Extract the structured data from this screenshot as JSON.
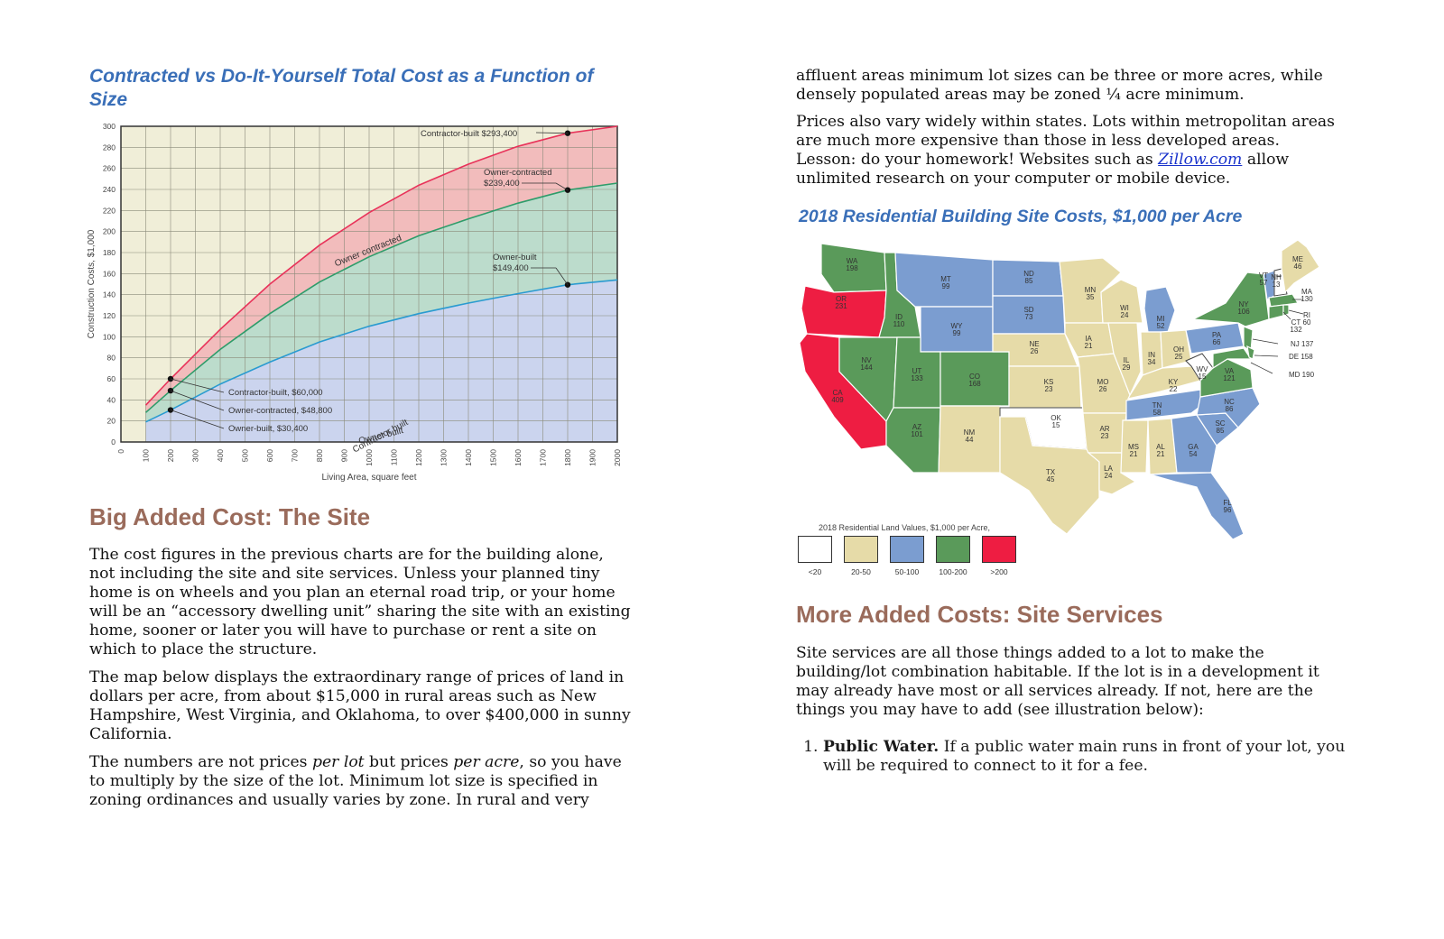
{
  "left_page": {
    "chart_title": "Contracted vs Do-It-Yourself Total Cost as a Function of Size",
    "section_title": "Big Added Cost: The Site",
    "paragraphs": [
      "The cost figures in the previous charts are for the building alone, not including the site and site services. Unless your planned tiny home is on wheels and you plan an eternal road trip, or your home will be an “accessory dwelling unit” sharing the site with an existing home, sooner or later you will have to purchase or rent a site on which to place the structure.",
      "The map below displays the extraordinary range of prices of land in dollars per acre, from about $15,000 in rural areas such as New Hampshire, West Virginia, and Oklahoma, to over $400,000 in sunny California."
    ],
    "para3": {
      "t1": "The numbers are not prices ",
      "em1": "per lot",
      "t2": " but prices ",
      "em2": "per acre",
      "t3": ", so you have to multiply by the size of the lot. Minimum lot size is specified in zoning ordinances and usually varies by zone. In rural and very"
    }
  },
  "chart_data": {
    "type": "area",
    "xlabel": "Living Area, square feet",
    "ylabel": "Construction Costs, $1,000",
    "x_ticks": [
      0,
      100,
      200,
      300,
      400,
      500,
      600,
      700,
      800,
      900,
      1000,
      1100,
      1200,
      1300,
      1400,
      1500,
      1600,
      1700,
      1800,
      1900,
      2000
    ],
    "y_ticks": [
      0,
      20,
      40,
      60,
      80,
      100,
      120,
      140,
      160,
      180,
      200,
      220,
      240,
      260,
      280,
      300
    ],
    "xlim": [
      0,
      2000
    ],
    "ylim": [
      0,
      300
    ],
    "grid": true,
    "series": [
      {
        "name": "Contractor built",
        "color": "#e8335a",
        "fill": "#f2bcbc",
        "x": [
          100,
          200,
          400,
          600,
          800,
          1000,
          1200,
          1400,
          1600,
          1800,
          2000
        ],
        "y": [
          35,
          60,
          107,
          150,
          187,
          218,
          244,
          264,
          281,
          293.4,
          300
        ]
      },
      {
        "name": "Owner contracted",
        "color": "#2e9c6a",
        "fill": "#bcdccc",
        "x": [
          100,
          200,
          400,
          600,
          800,
          1000,
          1200,
          1400,
          1600,
          1800,
          2000
        ],
        "y": [
          28,
          48.8,
          88,
          122,
          152,
          176,
          196,
          212,
          227,
          239.4,
          246
        ]
      },
      {
        "name": "Owner built",
        "color": "#2a9bd0",
        "fill": "#cbd4ee",
        "x": [
          100,
          200,
          400,
          600,
          800,
          1000,
          1200,
          1400,
          1600,
          1800,
          2000
        ],
        "y": [
          19,
          30.4,
          55,
          76,
          95,
          110,
          122,
          132,
          141,
          149.4,
          154
        ]
      }
    ],
    "annotations": {
      "contractor_high": "Contractor-built $293,400",
      "owner_contracted_high_1": "Owner-contracted",
      "owner_contracted_high_2": "$239,400",
      "owner_built_high_1": "Owner-built",
      "owner_built_high_2": "$149,400",
      "contractor_low": "Contractor-built, $60,000",
      "owner_contracted_low": "Owner-contracted, $48,800",
      "owner_built_low": "Owner-built, $30,400"
    },
    "background_color": "#f0eed8"
  },
  "right_page": {
    "para_top": "affluent areas minimum lot sizes can be three or more acres, while densely populated areas may be zoned ¼ acre minimum.",
    "para2_before": "Prices also vary widely within states. Lots within metropolitan areas are much more expensive than those in less developed areas. Lesson: do your homework! Websites such as ",
    "para2_link": "Zillow.com",
    "para2_after": " allow unlimited research on your computer or mobile device.",
    "map_title": "2018 Residential Building Site Costs, $1,000 per Acre",
    "legend": {
      "title": "2018 Residential Land Values, $1,000 per Acre,",
      "items": [
        {
          "label": "<20",
          "color": "#ffffff"
        },
        {
          "label": "20-50",
          "color": "#e6dba8"
        },
        {
          "label": "50-100",
          "color": "#7b9dd0"
        },
        {
          "label": "100-200",
          "color": "#5a9a5a"
        },
        {
          "label": ">200",
          "color": "#ee1d42"
        }
      ]
    },
    "section_title": "More Added Costs: Site Services",
    "para3": "Site services are all those things added to a lot to make the building/lot combination habitable. If the lot is in a development it may already have most or all services already. If not, here are the things you may have to add (see illustration below):",
    "list": [
      {
        "bold": "Public Water.",
        "text": " If a public water main runs in front of your lot, you will be required to connect to it for a fee."
      }
    ],
    "map_labels": [
      {
        "id": "WA",
        "name": "WA",
        "value": "198"
      },
      {
        "id": "OR",
        "name": "OR",
        "value": "231"
      },
      {
        "id": "CA",
        "name": "CA",
        "value": "409"
      },
      {
        "id": "NV",
        "name": "NV",
        "value": "144"
      },
      {
        "id": "ID",
        "name": "ID",
        "value": "110"
      },
      {
        "id": "MT",
        "name": "MT",
        "value": "99"
      },
      {
        "id": "WY",
        "name": "WY",
        "value": "99"
      },
      {
        "id": "UT",
        "name": "UT",
        "value": "133"
      },
      {
        "id": "AZ",
        "name": "AZ",
        "value": "101"
      },
      {
        "id": "CO",
        "name": "CO",
        "value": "168"
      },
      {
        "id": "NM",
        "name": "NM",
        "value": "44"
      },
      {
        "id": "ND",
        "name": "ND",
        "value": "85"
      },
      {
        "id": "SD",
        "name": "SD",
        "value": "73"
      },
      {
        "id": "NE",
        "name": "NE",
        "value": "26"
      },
      {
        "id": "KS",
        "name": "KS",
        "value": "23"
      },
      {
        "id": "OK",
        "name": "OK",
        "value": "15"
      },
      {
        "id": "TX",
        "name": "TX",
        "value": "45"
      },
      {
        "id": "MN",
        "name": "MN",
        "value": "35"
      },
      {
        "id": "IA",
        "name": "IA",
        "value": "21"
      },
      {
        "id": "MO",
        "name": "MO",
        "value": "26"
      },
      {
        "id": "AR",
        "name": "AR",
        "value": "23"
      },
      {
        "id": "LA",
        "name": "LA",
        "value": "24"
      },
      {
        "id": "WI",
        "name": "WI",
        "value": "24"
      },
      {
        "id": "IL",
        "name": "IL",
        "value": "29"
      },
      {
        "id": "MI",
        "name": "MI",
        "value": "52"
      },
      {
        "id": "IN",
        "name": "IN",
        "value": "34"
      },
      {
        "id": "OH",
        "name": "OH",
        "value": "25"
      },
      {
        "id": "KY",
        "name": "KY",
        "value": "22"
      },
      {
        "id": "TN",
        "name": "TN",
        "value": "58"
      },
      {
        "id": "MS",
        "name": "MS",
        "value": "21"
      },
      {
        "id": "AL",
        "name": "AL",
        "value": "21"
      },
      {
        "id": "GA",
        "name": "GA",
        "value": "54"
      },
      {
        "id": "FL",
        "name": "FL",
        "value": "96"
      },
      {
        "id": "SC",
        "name": "SC",
        "value": "85"
      },
      {
        "id": "NC",
        "name": "NC",
        "value": "86"
      },
      {
        "id": "VA",
        "name": "VA",
        "value": "121"
      },
      {
        "id": "WV",
        "name": "WV",
        "value": "15"
      },
      {
        "id": "PA",
        "name": "PA",
        "value": "66"
      },
      {
        "id": "NY",
        "name": "NY",
        "value": "106"
      },
      {
        "id": "VT",
        "name": "VT",
        "value": "57"
      },
      {
        "id": "NH",
        "name": "NH",
        "value": "13"
      },
      {
        "id": "ME",
        "name": "ME",
        "value": "46"
      },
      {
        "id": "MA",
        "name": "MA",
        "value": "130"
      },
      {
        "id": "RI",
        "name": "RI",
        "value": "60"
      },
      {
        "id": "CT",
        "name": "CT",
        "value": "132"
      },
      {
        "id": "NJ",
        "name": "NJ 137",
        "value": ""
      },
      {
        "id": "DE",
        "name": "DE 158",
        "value": ""
      },
      {
        "id": "MD",
        "name": "MD 190",
        "value": ""
      }
    ]
  }
}
